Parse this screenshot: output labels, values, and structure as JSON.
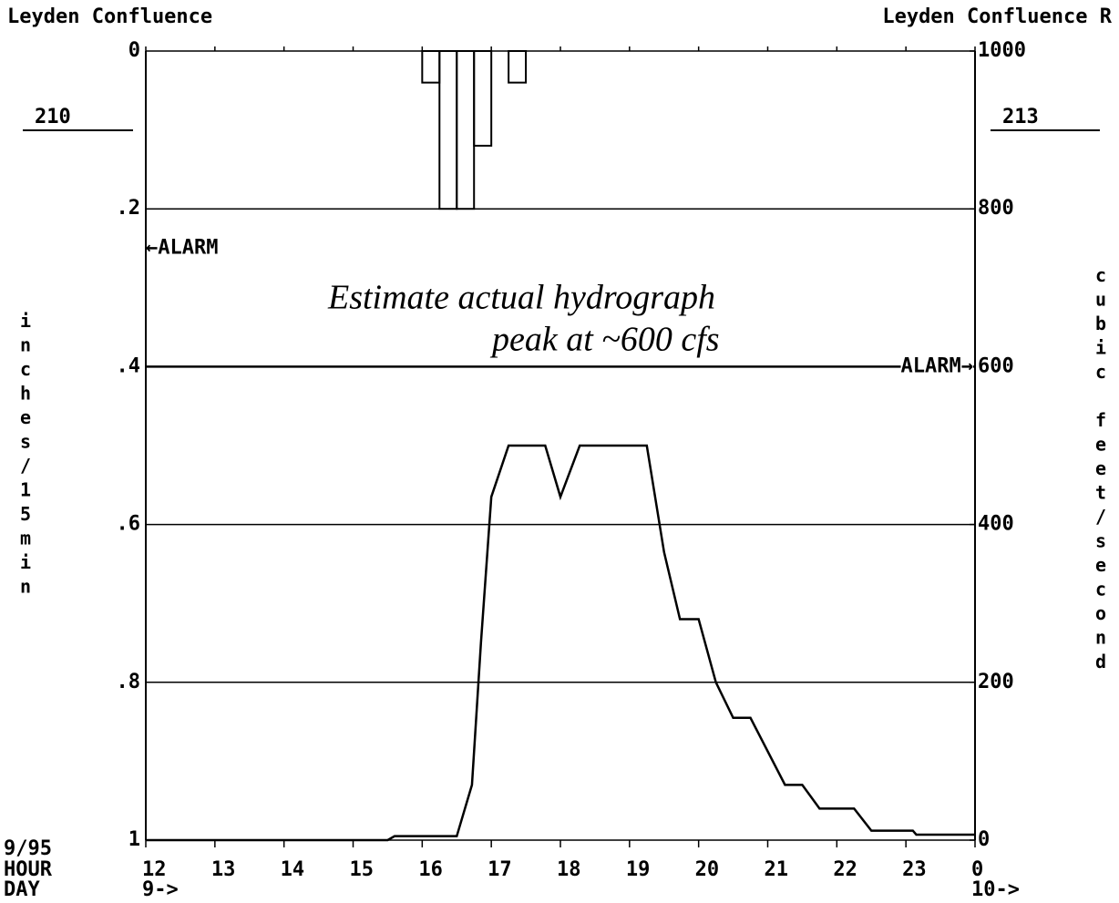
{
  "header": {
    "left": "Leyden Confluence",
    "right": "Leyden Confluence R",
    "left_id": "210",
    "right_id": "213"
  },
  "footer": {
    "date": "9/95",
    "hour": "HOUR",
    "day": "DAY"
  },
  "chart_data": [
    {
      "type": "histogram",
      "ylabel": "inches/15min",
      "bins": [
        16,
        16.25,
        16.5,
        16.75,
        17,
        17.25,
        17.5
      ],
      "values": [
        0.04,
        0.2,
        0.2,
        0.12,
        0,
        0.04
      ],
      "color": "#000000",
      "ylim": [
        0,
        1
      ],
      "y_inverted": true,
      "yticks": [
        0,
        {
          "value": 0.2,
          "label": ".2"
        },
        {
          "value": 0.4,
          "label": ".4"
        },
        {
          "value": 0.6,
          "label": ".6"
        },
        {
          "value": 0.8,
          "label": ".8"
        },
        1
      ],
      "grid": true,
      "xlim": [
        12,
        24
      ],
      "xticks": [
        12,
        13,
        14,
        15,
        16,
        17,
        18,
        19,
        20,
        21,
        22,
        23,
        {
          "value": 24,
          "label": "0"
        }
      ],
      "day_ticks": [
        {
          "value": 12,
          "label": "9->"
        },
        {
          "value": 24,
          "label": "10->"
        }
      ],
      "alarm": {
        "label": "←ALARM",
        "value": 0.25
      }
    },
    {
      "type": "line",
      "y2label": "cubic feet/second",
      "axis": "y2",
      "x": [
        12,
        15.5,
        15.6,
        16.5,
        16.72,
        16.85,
        17.0,
        17.25,
        17.78,
        18.0,
        18.28,
        19.25,
        19.5,
        19.73,
        20.0,
        20.25,
        20.5,
        20.75,
        21.25,
        21.5,
        21.75,
        22.25,
        22.5,
        23.1,
        23.15,
        24
      ],
      "values": [
        0,
        0,
        5,
        5,
        70,
        250,
        435,
        500,
        500,
        435,
        500,
        500,
        365,
        280,
        280,
        200,
        155,
        155,
        70,
        70,
        40,
        40,
        12,
        12,
        7,
        7
      ],
      "color": "#000000",
      "y2lim": [
        0,
        1000
      ],
      "y2ticks": [
        0,
        200,
        400,
        600,
        800,
        1000
      ],
      "alarm": {
        "label": "ALARM→",
        "value": 600
      },
      "note": [
        "Estimate actual hydrograph",
        "peak at ~600 cfs"
      ]
    }
  ]
}
